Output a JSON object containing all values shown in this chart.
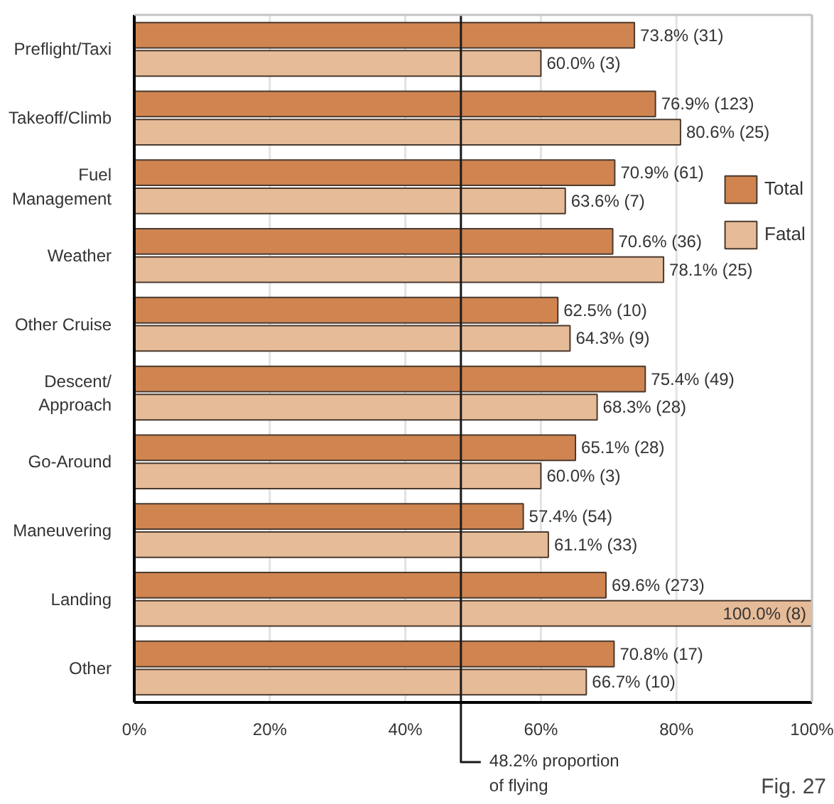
{
  "chart_data": {
    "type": "bar",
    "orientation": "horizontal",
    "categories": [
      "Preflight/Taxi",
      "Takeoff/Climb",
      "Fuel Management",
      "Weather",
      "Other Cruise",
      "Descent/Approach",
      "Go-Around",
      "Maneuvering",
      "Landing",
      "Other"
    ],
    "series": [
      {
        "name": "Total",
        "color": "#d08450",
        "values": [
          73.8,
          76.9,
          70.9,
          70.6,
          62.5,
          75.4,
          65.1,
          57.4,
          69.6,
          70.8
        ],
        "value_labels": [
          "73.8% (31)",
          "76.9% (123)",
          "70.9% (61)",
          "70.6% (36)",
          "62.5% (10)",
          "75.4% (49)",
          "65.1% (28)",
          "57.4% (54)",
          "69.6% (273)",
          "70.8% (17)"
        ]
      },
      {
        "name": "Fatal",
        "color": "#e6bb98",
        "values": [
          60.0,
          80.6,
          63.6,
          78.1,
          64.3,
          68.3,
          60.0,
          61.1,
          100.0,
          66.7
        ],
        "value_labels": [
          "60.0% (3)",
          "80.6% (25)",
          "63.6% (7)",
          "78.1% (25)",
          "64.3% (9)",
          "68.3% (28)",
          "60.0% (3)",
          "61.1% (33)",
          "100.0% (8)",
          "66.7% (10)"
        ]
      }
    ],
    "xlim": [
      0,
      100
    ],
    "xticks": [
      {
        "value": 0,
        "label": "0%"
      },
      {
        "value": 20,
        "label": "20%"
      },
      {
        "value": 40,
        "label": "40%"
      },
      {
        "value": 60,
        "label": "60%"
      },
      {
        "value": 80,
        "label": "80%"
      },
      {
        "value": 100,
        "label": "100%"
      }
    ],
    "ref_lines": [
      {
        "axis": "x",
        "value": 48.2,
        "label": "48.2% proportion of flying",
        "color": "#1a1a1a"
      }
    ],
    "annotations": [
      "Fig. 27"
    ],
    "grid": "x",
    "legend": "right"
  }
}
